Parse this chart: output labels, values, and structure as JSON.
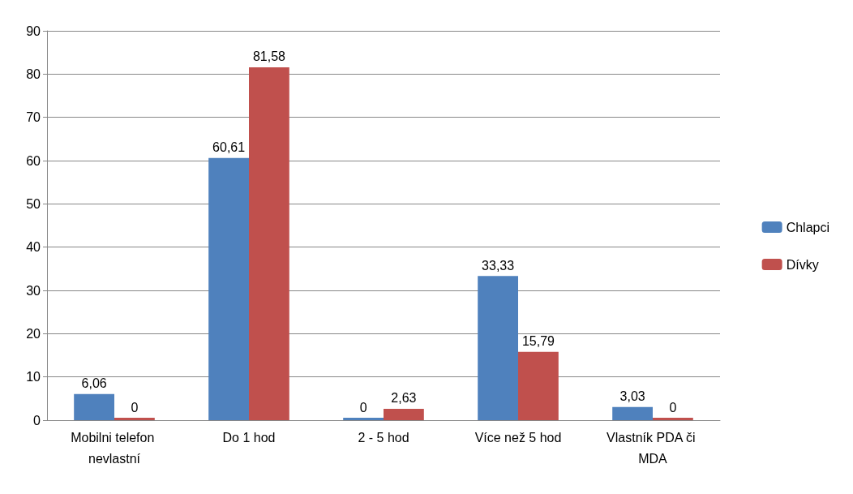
{
  "chart_data": {
    "type": "bar",
    "categories": [
      "Mobilni telefon nevlastní",
      "Do 1 hod",
      "2 - 5 hod",
      "Více než 5 hod",
      "Vlastník PDA či MDA"
    ],
    "series": [
      {
        "name": "Chlapci",
        "color": "#4f81bd",
        "values": [
          6.06,
          60.61,
          0,
          33.33,
          3.03
        ],
        "value_labels": [
          "6,06",
          "60,61",
          "0",
          "33,33",
          "3,03"
        ]
      },
      {
        "name": "Dívky",
        "color": "#c0504d",
        "values": [
          0,
          81.58,
          2.63,
          15.79,
          0
        ],
        "value_labels": [
          "0",
          "81,58",
          "2,63",
          "15,79",
          "0"
        ]
      }
    ],
    "ylim": [
      0,
      90
    ],
    "yticks": [
      0,
      10,
      20,
      30,
      40,
      50,
      60,
      70,
      80,
      90
    ],
    "grid": "y",
    "legend": "right"
  }
}
